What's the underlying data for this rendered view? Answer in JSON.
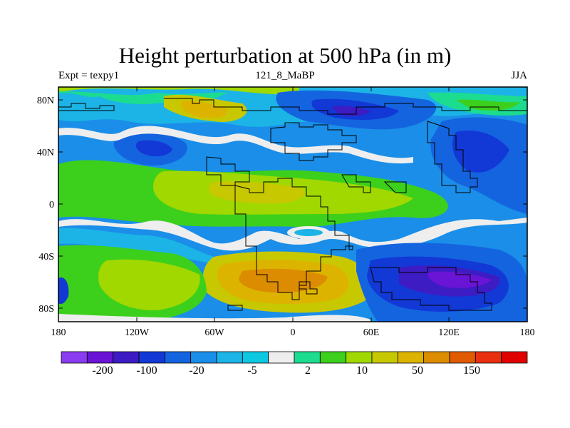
{
  "title": "Height perturbation at 500 hPa (in m)",
  "left_string": "Expt = texpy1",
  "center_string": "121_8_MaBP",
  "right_string": "JJA",
  "x_ticks": [
    "180",
    "120W",
    "60W",
    "0",
    "60E",
    "120E",
    "180"
  ],
  "y_ticks": [
    "80N",
    "40N",
    "0",
    "40S",
    "80S"
  ],
  "colorbar": {
    "colors": [
      "#8a3cf0",
      "#6a14d6",
      "#3d1cc4",
      "#1238d6",
      "#1464e0",
      "#1a8ee8",
      "#1cb4e6",
      "#0cc8e0",
      "#eeeeee",
      "#1cdc90",
      "#3cd01c",
      "#a0d800",
      "#c8c800",
      "#dcb400",
      "#dc8c00",
      "#e05a00",
      "#e83010",
      "#e00000"
    ],
    "labels": [
      "-200",
      "-100",
      "-20",
      "-5",
      "2",
      "10",
      "50",
      "150"
    ]
  }
}
